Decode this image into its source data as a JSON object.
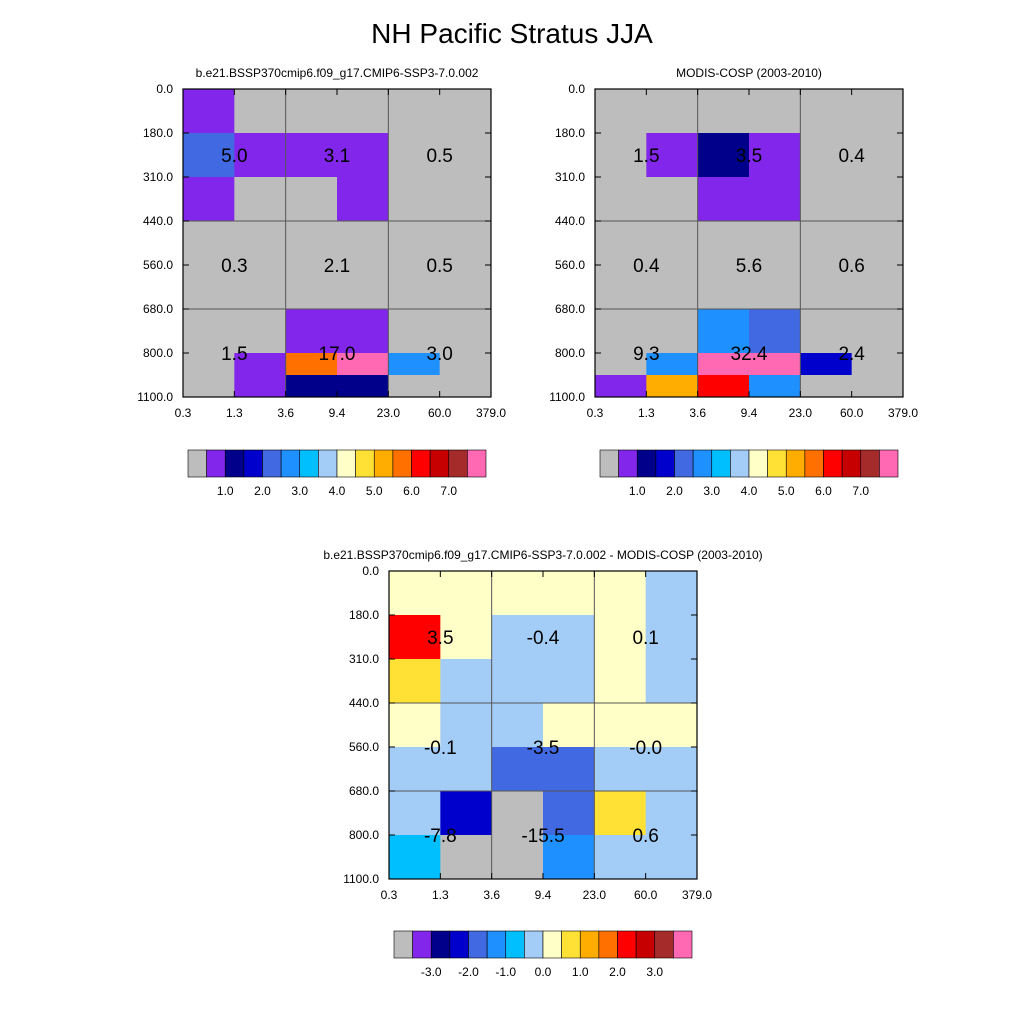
{
  "title": "NH Pacific Stratus JJA",
  "colors": {
    "palette_top": [
      "#bdbdbd",
      "#8126ea",
      "#00008b",
      "#0000cd",
      "#4169e1",
      "#1e90ff",
      "#00bfff",
      "#a3cdf7",
      "#ffffc8",
      "#ffe135",
      "#ffad00",
      "#ff7000",
      "#ff0000",
      "#c60000",
      "#a52a2a",
      "#ff69b4"
    ],
    "palette_diff": [
      "#bdbdbd",
      "#8126ea",
      "#00008b",
      "#0000cd",
      "#4169e1",
      "#1e90ff",
      "#00bfff",
      "#a3cdf7",
      "#ffffc8",
      "#ffe135",
      "#ffad00",
      "#ff7000",
      "#ff0000",
      "#c60000",
      "#a52a2a",
      "#ff69b4"
    ]
  },
  "chart_data": [
    {
      "type": "heatmap",
      "title": "b.e21.BSSP370cmip6.f09_g17.CMIP6-SSP3-7.0.002",
      "xticks": [
        "0.3",
        "1.3",
        "3.6",
        "9.4",
        "23.0",
        "60.0",
        "379.0"
      ],
      "yticks": [
        "0.0",
        "180.0",
        "310.0",
        "440.0",
        "560.0",
        "680.0",
        "800.0",
        "1100.0"
      ],
      "cells": [
        [
          1,
          0,
          0,
          0,
          0,
          0
        ],
        [
          4,
          1,
          1,
          1,
          0,
          0
        ],
        [
          1,
          0,
          0,
          1,
          0,
          0
        ],
        [
          0,
          0,
          0,
          0,
          0,
          0
        ],
        [
          0,
          0,
          0,
          0,
          0,
          0
        ],
        [
          0,
          0,
          1,
          1,
          0,
          0
        ],
        [
          0,
          1,
          11,
          15,
          5,
          0
        ],
        [
          0,
          1,
          2,
          2,
          0,
          0
        ]
      ],
      "group_values": [
        [
          "5.0",
          "3.1",
          "0.5"
        ],
        [
          "0.3",
          "2.1",
          "0.5"
        ],
        [
          "1.5",
          "17.0",
          "3.0"
        ]
      ],
      "colorbar_labels": [
        "1.0",
        "2.0",
        "3.0",
        "4.0",
        "5.0",
        "6.0",
        "7.0"
      ]
    },
    {
      "type": "heatmap",
      "title": "MODIS-COSP (2003-2010)",
      "xticks": [
        "0.3",
        "1.3",
        "3.6",
        "9.4",
        "23.0",
        "60.0",
        "379.0"
      ],
      "yticks": [
        "0.0",
        "180.0",
        "310.0",
        "440.0",
        "560.0",
        "680.0",
        "800.0",
        "1100.0"
      ],
      "cells": [
        [
          0,
          0,
          0,
          0,
          0,
          0
        ],
        [
          0,
          1,
          2,
          1,
          0,
          0
        ],
        [
          0,
          0,
          1,
          1,
          0,
          0
        ],
        [
          0,
          0,
          0,
          0,
          0,
          0
        ],
        [
          0,
          0,
          0,
          0,
          0,
          0
        ],
        [
          0,
          0,
          5,
          4,
          0,
          0
        ],
        [
          0,
          5,
          15,
          15,
          3,
          0
        ],
        [
          1,
          10,
          12,
          5,
          0,
          0
        ]
      ],
      "group_values": [
        [
          "1.5",
          "3.5",
          "0.4"
        ],
        [
          "0.4",
          "5.6",
          "0.6"
        ],
        [
          "9.3",
          "32.4",
          "2.4"
        ]
      ],
      "colorbar_labels": [
        "1.0",
        "2.0",
        "3.0",
        "4.0",
        "5.0",
        "6.0",
        "7.0"
      ]
    },
    {
      "type": "heatmap",
      "title": "b.e21.BSSP370cmip6.f09_g17.CMIP6-SSP3-7.0.002 - MODIS-COSP (2003-2010)",
      "xticks": [
        "0.3",
        "1.3",
        "3.6",
        "9.4",
        "23.0",
        "60.0",
        "379.0"
      ],
      "yticks": [
        "0.0",
        "180.0",
        "310.0",
        "440.0",
        "560.0",
        "680.0",
        "800.0",
        "1100.0"
      ],
      "cells": [
        [
          8,
          8,
          8,
          8,
          8,
          7
        ],
        [
          12,
          8,
          7,
          7,
          8,
          7
        ],
        [
          9,
          7,
          7,
          7,
          8,
          7
        ],
        [
          8,
          7,
          7,
          8,
          8,
          8
        ],
        [
          7,
          7,
          4,
          4,
          7,
          7
        ],
        [
          7,
          3,
          0,
          4,
          9,
          7
        ],
        [
          6,
          0,
          0,
          5,
          7,
          7
        ],
        [
          6,
          0,
          0,
          5,
          7,
          7
        ]
      ],
      "group_values": [
        [
          "3.5",
          "-0.4",
          "0.1"
        ],
        [
          "-0.1",
          "-3.5",
          "-0.0"
        ],
        [
          "-7.8",
          "-15.5",
          "0.6"
        ]
      ],
      "colorbar_labels": [
        "-3.0",
        "-2.0",
        "-1.0",
        "0.0",
        "1.0",
        "2.0",
        "3.0"
      ]
    }
  ]
}
